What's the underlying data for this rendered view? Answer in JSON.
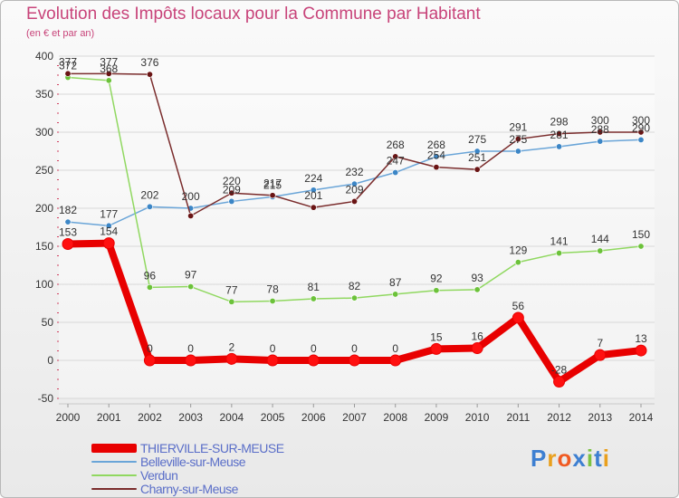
{
  "title": "Evolution des Impôts locaux pour la Commune par Habitant",
  "subtitle": "(en € et par an)",
  "brand": {
    "text": "Proxiti",
    "letter_colors": [
      "#3d7fd1",
      "#e9a01e",
      "#f05a22",
      "#3d7fd1",
      "#7cc243",
      "#3d7fd1",
      "#e9a01e"
    ]
  },
  "colors": {
    "title": "#c8447a",
    "axis_text": "#333333",
    "grid": "#d8d8d8",
    "legend_text": "#5a6ec8"
  },
  "chart_data": {
    "type": "line",
    "title": "Evolution des Impôts locaux pour la Commune par Habitant",
    "subtitle": "(en € et par an)",
    "x": [
      "2000",
      "2001",
      "2002",
      "2003",
      "2004",
      "2005",
      "2006",
      "2007",
      "2008",
      "2009",
      "2010",
      "2011",
      "2012",
      "2013",
      "2014"
    ],
    "ylim": [
      -50,
      400
    ],
    "yticks": [
      -50,
      0,
      50,
      100,
      150,
      200,
      250,
      300,
      350,
      400
    ],
    "grid": true,
    "legend_position": "bottom-left",
    "series": [
      {
        "name": "THIERVILLE-SUR-MEUSE",
        "color": "#e80000",
        "marker_color": "#ff1010",
        "width": "thick",
        "values": [
          153,
          154,
          0,
          0,
          2,
          0,
          0,
          0,
          0,
          15,
          16,
          56,
          -28,
          7,
          13
        ],
        "labels": [
          "153",
          "154",
          "0",
          "0",
          "2",
          "0",
          "0",
          "0",
          "0",
          "15",
          "16",
          "56",
          "-28",
          "7",
          "13"
        ]
      },
      {
        "name": "Belleville-sur-Meuse",
        "color": "#6aa5d8",
        "marker_color": "#3c86c6",
        "width": "thin",
        "values": [
          182,
          177,
          202,
          200,
          209,
          215,
          224,
          232,
          247,
          268,
          275,
          275,
          281,
          288,
          290
        ],
        "labels": [
          "182",
          "177",
          "202",
          "200",
          "209",
          "215",
          "224",
          "232",
          "247",
          "268",
          "275",
          "275",
          "281",
          "288",
          "290"
        ]
      },
      {
        "name": "Verdun",
        "color": "#90d860",
        "marker_color": "#6cc23a",
        "width": "thin",
        "values": [
          372,
          368,
          96,
          97,
          77,
          78,
          81,
          82,
          87,
          92,
          93,
          129,
          141,
          144,
          150
        ],
        "labels": [
          "372",
          "368",
          "96",
          "97",
          "77",
          "78",
          "81",
          "82",
          "87",
          "92",
          "93",
          "129",
          "141",
          "144",
          "150"
        ]
      },
      {
        "name": "Charny-sur-Meuse",
        "color": "#7a2c2c",
        "marker_color": "#6a1414",
        "width": "thin",
        "values": [
          377,
          377,
          376,
          190,
          220,
          217,
          201,
          209,
          268,
          254,
          251,
          291,
          298,
          300,
          300
        ],
        "labels": [
          "377",
          "377",
          "376",
          "",
          "220",
          "217",
          "201",
          "209",
          "268",
          "254",
          "251",
          "291",
          "298",
          "300",
          "300"
        ]
      }
    ]
  }
}
